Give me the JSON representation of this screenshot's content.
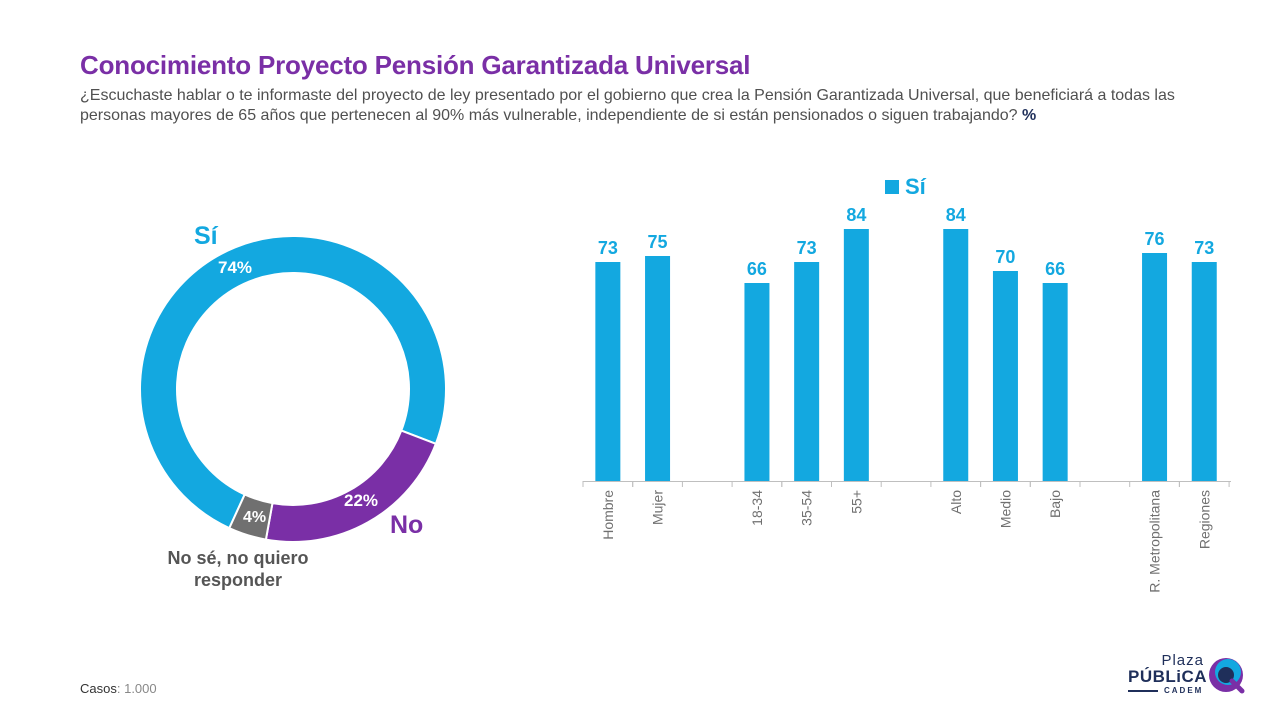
{
  "header": {
    "title": "Conocimiento Proyecto Pensión Garantizada Universal",
    "question": "¿Escuchaste hablar o te informaste del proyecto de ley presentado por el gobierno que crea la Pensión Garantizada Universal, que beneficiará a todas las personas mayores de 65 años que pertenecen al 90% más vulnerable, independiente de si están pensionados o siguen trabajando?",
    "unit": "%"
  },
  "colors": {
    "title": "#7a2fa6",
    "si": "#13a8e0",
    "no": "#7a2fa6",
    "unsure": "#707070"
  },
  "chart_data": [
    {
      "type": "pie",
      "variant": "donut",
      "slices": [
        {
          "label": "Sí",
          "value": 74,
          "value_label": "74%"
        },
        {
          "label": "No",
          "value": 22,
          "value_label": "22%"
        },
        {
          "label": "No sé, no quiero responder",
          "value": 4,
          "value_label": "4%"
        }
      ]
    },
    {
      "type": "bar",
      "legend": "Sí",
      "legend_position": "top",
      "groups": [
        {
          "categories": [
            "Hombre",
            "Mujer"
          ],
          "values": [
            73,
            75
          ]
        },
        {
          "categories": [
            "18-34",
            "35-54",
            "55+"
          ],
          "values": [
            66,
            73,
            84
          ]
        },
        {
          "categories": [
            "Alto",
            "Medio",
            "Bajo"
          ],
          "values": [
            84,
            70,
            66
          ]
        },
        {
          "categories": [
            "R. Metropolitana",
            "Regiones"
          ],
          "values": [
            76,
            73
          ]
        }
      ],
      "ylim": [
        0,
        100
      ],
      "grid": false
    }
  ],
  "footer": {
    "cases_label": "Casos",
    "cases_value": ": 1.000"
  },
  "logo": {
    "line1": "Plaza",
    "line2": "PÚBLiCA",
    "line3": "CADEM"
  }
}
